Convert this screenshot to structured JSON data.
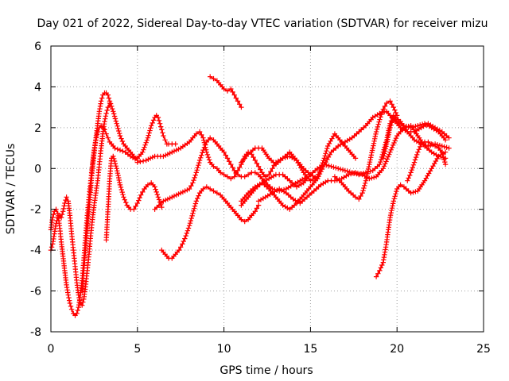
{
  "chart_data": {
    "type": "scatter",
    "title": "Day 021 of 2022, Sidereal Day-to-day VTEC variation (SDTVAR) for receiver mizu",
    "xlabel": "GPS time / hours",
    "ylabel": "SDTVAR / TECUs",
    "xlim": [
      0,
      25
    ],
    "ylim": [
      -8,
      6
    ],
    "xticks": [
      0,
      5,
      10,
      15,
      20,
      25
    ],
    "yticks": [
      -8,
      -6,
      -4,
      -2,
      0,
      2,
      4,
      6
    ],
    "grid": true,
    "marker": "plus",
    "color": "#ff0000",
    "series": [
      {
        "x": [
          0.0,
          0.1,
          0.2,
          0.3,
          0.4,
          0.5,
          0.6,
          0.7,
          0.8,
          0.9,
          1.0,
          1.1,
          1.2,
          1.3,
          1.4,
          1.5,
          1.6,
          1.7,
          1.8,
          1.9,
          2.0,
          2.1,
          2.2,
          2.3,
          2.4,
          2.5,
          2.6,
          2.7,
          2.8,
          2.9,
          3.0,
          3.1,
          3.2,
          3.3,
          3.4,
          3.5,
          3.7,
          4.0,
          4.3,
          4.6,
          5.0
        ],
        "y": [
          -3.0,
          -2.4,
          -2.1,
          -2.0,
          -2.2,
          -2.8,
          -3.6,
          -4.3,
          -5.0,
          -5.7,
          -6.2,
          -6.6,
          -6.9,
          -7.1,
          -7.2,
          -7.1,
          -6.8,
          -6.2,
          -5.5,
          -4.5,
          -3.4,
          -2.3,
          -1.4,
          -0.6,
          0.2,
          0.9,
          1.4,
          1.8,
          2.0,
          2.1,
          2.0,
          1.9,
          1.7,
          1.5,
          1.3,
          1.2,
          1.0,
          0.9,
          0.8,
          0.6,
          0.4
        ]
      },
      {
        "x": [
          0.0,
          0.1,
          0.2,
          0.3,
          0.4,
          0.5,
          0.6,
          0.7,
          0.8,
          0.9,
          1.0,
          1.1,
          1.2,
          1.3,
          1.4,
          1.5,
          1.6,
          1.7,
          1.8,
          1.9,
          2.0,
          2.1,
          2.2,
          2.3,
          2.4,
          2.5,
          2.6,
          2.7,
          2.8,
          2.9,
          3.0,
          3.1,
          3.2,
          3.3,
          3.4
        ],
        "y": [
          -4.0,
          -3.7,
          -3.2,
          -2.7,
          -2.4,
          -2.3,
          -2.4,
          -2.1,
          -1.7,
          -1.4,
          -1.6,
          -2.3,
          -3.2,
          -4.0,
          -4.8,
          -5.6,
          -6.2,
          -6.6,
          -6.7,
          -6.4,
          -5.8,
          -5.0,
          -4.2,
          -3.3,
          -2.5,
          -1.8,
          -1.2,
          -0.6,
          0.2,
          1.0,
          1.7,
          2.3,
          2.7,
          3.0,
          3.2
        ]
      },
      {
        "x": [
          1.8,
          1.9,
          2.0,
          2.2,
          2.4,
          2.6,
          2.8,
          2.9,
          3.0,
          3.1,
          3.2,
          3.3,
          3.4,
          3.6,
          3.8,
          4.0,
          4.2,
          4.4,
          4.6,
          4.8,
          5.0,
          5.3,
          5.6,
          5.8,
          6.0,
          6.1,
          6.2,
          6.3,
          6.4,
          6.5,
          6.6,
          6.7,
          6.8,
          7.0,
          7.2
        ],
        "y": [
          -6.0,
          -5.0,
          -4.0,
          -2.0,
          0.0,
          1.5,
          2.8,
          3.3,
          3.6,
          3.7,
          3.7,
          3.6,
          3.3,
          2.8,
          2.2,
          1.6,
          1.2,
          1.0,
          0.8,
          0.6,
          0.5,
          0.8,
          1.5,
          2.1,
          2.5,
          2.6,
          2.5,
          2.2,
          1.9,
          1.6,
          1.4,
          1.2,
          1.2,
          1.2,
          1.2
        ]
      },
      {
        "x": [
          3.2,
          3.3,
          3.4,
          3.5,
          3.6,
          3.8,
          4.0,
          4.2,
          4.4,
          4.6,
          4.8,
          5.0,
          5.2,
          5.4,
          5.6,
          5.8,
          6.0,
          6.2,
          6.4
        ],
        "y": [
          -3.5,
          -2.0,
          -0.5,
          0.5,
          0.6,
          0.0,
          -0.8,
          -1.4,
          -1.8,
          -2.0,
          -2.0,
          -1.7,
          -1.3,
          -1.0,
          -0.8,
          -0.7,
          -0.9,
          -1.4,
          -1.9
        ]
      },
      {
        "x": [
          5.0,
          5.5,
          6.0,
          6.5,
          7.0,
          7.5,
          8.0,
          8.2,
          8.4,
          8.6,
          8.8,
          9.0,
          9.2,
          9.4,
          9.6,
          9.8,
          10.0,
          10.2,
          10.4,
          10.6,
          10.8,
          11.0,
          11.2,
          11.4,
          11.6,
          11.8,
          12.0,
          12.2,
          12.4,
          12.6,
          12.8,
          13.0,
          13.4,
          13.8,
          14.2,
          14.6,
          15.0,
          15.4
        ],
        "y": [
          0.3,
          0.4,
          0.6,
          0.6,
          0.8,
          1.0,
          1.3,
          1.5,
          1.7,
          1.8,
          1.5,
          0.8,
          0.3,
          0.1,
          0.0,
          -0.2,
          -0.3,
          -0.4,
          -0.5,
          -0.4,
          -0.1,
          0.2,
          0.6,
          0.8,
          0.7,
          0.4,
          0.1,
          -0.2,
          -0.4,
          -0.3,
          0.0,
          0.3,
          0.5,
          0.6,
          0.4,
          0.0,
          -0.3,
          -0.5
        ]
      },
      {
        "x": [
          6.0,
          6.5,
          7.0,
          7.5,
          8.0,
          8.2,
          8.4,
          8.6,
          8.8,
          9.0,
          9.2,
          9.4,
          9.6,
          9.8,
          10.0,
          10.2,
          10.4,
          10.6,
          10.8,
          11.0,
          11.2,
          11.4,
          11.6,
          11.8,
          12.0,
          12.4,
          12.8,
          13.2,
          13.6,
          14.0,
          14.4,
          14.8
        ],
        "y": [
          -2.0,
          -1.6,
          -1.4,
          -1.2,
          -1.0,
          -0.7,
          -0.2,
          0.4,
          0.9,
          1.3,
          1.5,
          1.4,
          1.2,
          1.0,
          0.8,
          0.5,
          0.2,
          -0.1,
          -0.3,
          -0.4,
          -0.4,
          -0.3,
          -0.2,
          -0.2,
          -0.3,
          -0.7,
          -1.0,
          -1.1,
          -1.0,
          -0.8,
          -0.6,
          -0.4
        ]
      },
      {
        "x": [
          6.4,
          6.6,
          6.8,
          7.0,
          7.2,
          7.4,
          7.6,
          7.8,
          8.0,
          8.2,
          8.4,
          8.6,
          8.8,
          9.0,
          9.2,
          9.4,
          9.6,
          9.8,
          10.0,
          10.2,
          10.4,
          10.6,
          10.8,
          11.0,
          11.2,
          11.4,
          11.6,
          11.8,
          12.0
        ],
        "y": [
          -4.0,
          -4.2,
          -4.4,
          -4.4,
          -4.2,
          -4.0,
          -3.7,
          -3.3,
          -2.8,
          -2.2,
          -1.6,
          -1.2,
          -1.0,
          -0.9,
          -1.0,
          -1.1,
          -1.2,
          -1.3,
          -1.5,
          -1.7,
          -1.9,
          -2.1,
          -2.3,
          -2.5,
          -2.6,
          -2.5,
          -2.3,
          -2.1,
          -1.8
        ]
      },
      {
        "x": [
          9.2,
          9.4,
          9.6,
          9.8,
          10.0,
          10.2,
          10.4,
          10.6,
          10.8,
          11.0
        ],
        "y": [
          4.5,
          4.4,
          4.3,
          4.1,
          3.9,
          3.8,
          3.9,
          3.6,
          3.3,
          3.0
        ]
      },
      {
        "x": [
          11.0,
          11.4,
          11.8,
          12.2,
          12.6,
          13.0,
          13.4,
          13.8,
          14.2,
          14.6,
          15.0,
          15.4,
          15.8,
          16.2,
          16.6,
          17.0,
          17.4,
          17.8,
          18.2,
          18.6,
          19.0,
          19.2,
          19.4,
          19.6,
          19.8,
          20.2,
          20.6,
          21.0,
          21.4,
          21.8,
          22.2,
          22.6,
          23.0
        ],
        "y": [
          -1.8,
          -1.4,
          -1.0,
          -0.7,
          -0.5,
          -0.3,
          -0.3,
          -0.6,
          -0.9,
          -0.7,
          -0.3,
          0.0,
          0.2,
          0.1,
          0.0,
          -0.1,
          -0.2,
          -0.3,
          -0.2,
          -0.1,
          0.2,
          0.8,
          1.4,
          2.2,
          2.6,
          2.3,
          1.8,
          1.4,
          1.2,
          1.1,
          1.2,
          1.1,
          1.0
        ]
      },
      {
        "x": [
          11.0,
          11.4,
          11.8,
          12.2,
          12.6,
          13.0,
          13.4,
          13.8,
          14.2,
          14.6,
          15.0,
          15.4,
          15.8,
          16.2,
          16.6,
          17.0,
          17.4,
          17.8,
          18.2,
          18.6,
          19.0,
          19.4,
          19.8,
          20.2,
          20.6,
          21.0,
          21.4,
          21.8,
          22.2,
          22.6,
          23.0
        ],
        "y": [
          -1.6,
          -1.2,
          -0.9,
          -0.7,
          -1.0,
          -1.4,
          -1.8,
          -2.0,
          -1.7,
          -1.3,
          -0.9,
          -0.5,
          0.2,
          0.8,
          1.1,
          1.3,
          1.5,
          1.8,
          2.1,
          2.5,
          2.7,
          2.8,
          2.4,
          2.0,
          1.8,
          1.8,
          2.0,
          2.2,
          2.0,
          1.8,
          1.5
        ]
      },
      {
        "x": [
          11.0,
          11.4,
          11.8,
          12.2,
          12.6,
          13.0,
          13.4,
          13.8,
          14.2,
          14.6,
          15.0,
          15.4,
          15.8,
          16.0,
          16.4,
          16.8,
          17.2,
          17.6
        ],
        "y": [
          0.3,
          0.7,
          1.0,
          1.0,
          0.5,
          0.2,
          0.5,
          0.8,
          0.4,
          -0.2,
          -0.6,
          -0.4,
          0.5,
          1.1,
          1.7,
          1.3,
          0.9,
          0.5
        ]
      },
      {
        "x": [
          12.0,
          12.4,
          12.8,
          13.2,
          13.6,
          14.0,
          14.4,
          14.8,
          15.2,
          15.6,
          16.0,
          16.4,
          16.8,
          17.2,
          17.6,
          18.0,
          18.4,
          18.8,
          19.2,
          19.6,
          20.0,
          20.4,
          20.8,
          21.2,
          21.6,
          22.0,
          22.4,
          22.8
        ],
        "y": [
          -1.6,
          -1.4,
          -1.2,
          -1.0,
          -1.2,
          -1.5,
          -1.7,
          -1.4,
          -1.1,
          -0.8,
          -0.6,
          -0.6,
          -0.5,
          -0.3,
          -0.2,
          -0.3,
          -0.5,
          -0.4,
          0.0,
          0.8,
          1.6,
          2.0,
          2.1,
          1.6,
          1.1,
          0.8,
          0.6,
          0.5
        ]
      },
      {
        "x": [
          16.4,
          16.8,
          17.2,
          17.6,
          17.8,
          18.0,
          18.2,
          18.4,
          18.6,
          18.8,
          19.0,
          19.2,
          19.4,
          19.6,
          19.8,
          20.0
        ],
        "y": [
          -0.4,
          -0.7,
          -1.1,
          -1.4,
          -1.5,
          -1.2,
          -0.6,
          0.2,
          1.0,
          1.8,
          2.4,
          2.9,
          3.2,
          3.3,
          3.0,
          2.6
        ]
      },
      {
        "x": [
          18.8,
          19.0,
          19.2,
          19.4,
          19.6,
          19.8,
          20.0,
          20.2,
          20.4,
          20.8,
          21.2,
          21.6,
          22.0,
          22.4,
          22.8
        ],
        "y": [
          -5.3,
          -5.0,
          -4.6,
          -3.6,
          -2.4,
          -1.6,
          -1.0,
          -0.8,
          -0.9,
          -1.2,
          -1.1,
          -0.6,
          0.0,
          0.6,
          0.8
        ]
      },
      {
        "x": [
          19.2,
          19.4,
          19.6,
          19.8,
          20.0,
          20.4,
          20.8,
          21.2,
          21.6,
          22.0,
          22.4,
          22.8
        ],
        "y": [
          0.5,
          1.2,
          2.0,
          2.5,
          2.3,
          2.1,
          2.0,
          2.1,
          2.2,
          2.0,
          1.8,
          1.4
        ]
      },
      {
        "x": [
          20.6,
          20.8,
          21.0,
          21.2,
          21.4,
          21.6,
          21.8,
          22.0,
          22.2,
          22.4,
          22.6,
          22.8
        ],
        "y": [
          -0.6,
          -0.2,
          0.3,
          0.8,
          1.2,
          1.3,
          1.3,
          1.2,
          1.1,
          1.0,
          0.8,
          0.2
        ]
      }
    ]
  }
}
